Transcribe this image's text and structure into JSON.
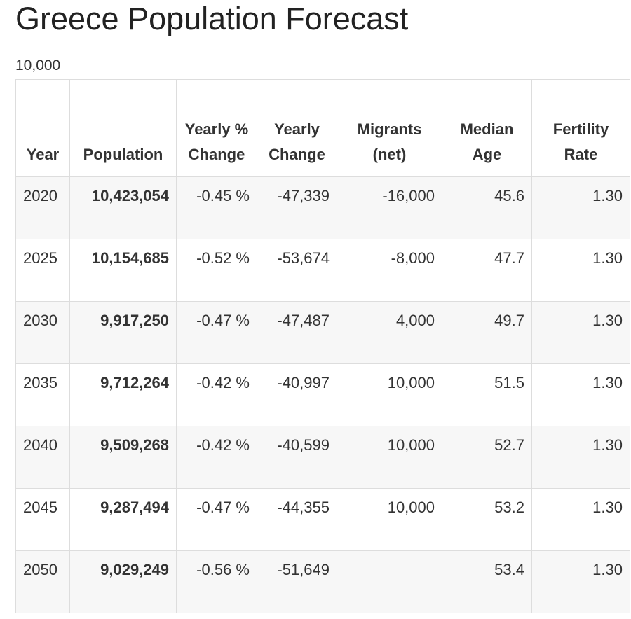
{
  "header": {
    "title": "Greece Population Forecast",
    "subtitle": "10,000"
  },
  "table": {
    "columns": [
      "Year",
      "Population",
      "Yearly % Change",
      "Yearly Change",
      "Migrants (net)",
      "Median Age",
      "Fertility Rate"
    ],
    "rows": [
      [
        "2020",
        "10,423,054",
        "-0.45 %",
        "-47,339",
        "-16,000",
        "45.6",
        "1.30"
      ],
      [
        "2025",
        "10,154,685",
        "-0.52 %",
        "-53,674",
        "-8,000",
        "47.7",
        "1.30"
      ],
      [
        "2030",
        "9,917,250",
        "-0.47 %",
        "-47,487",
        "4,000",
        "49.7",
        "1.30"
      ],
      [
        "2035",
        "9,712,264",
        "-0.42 %",
        "-40,997",
        "10,000",
        "51.5",
        "1.30"
      ],
      [
        "2040",
        "9,509,268",
        "-0.42 %",
        "-40,599",
        "10,000",
        "52.7",
        "1.30"
      ],
      [
        "2045",
        "9,287,494",
        "-0.47 %",
        "-44,355",
        "10,000",
        "53.2",
        "1.30"
      ],
      [
        "2050",
        "9,029,249",
        "-0.56 %",
        "-51,649",
        null,
        "53.4",
        "1.30"
      ]
    ]
  }
}
